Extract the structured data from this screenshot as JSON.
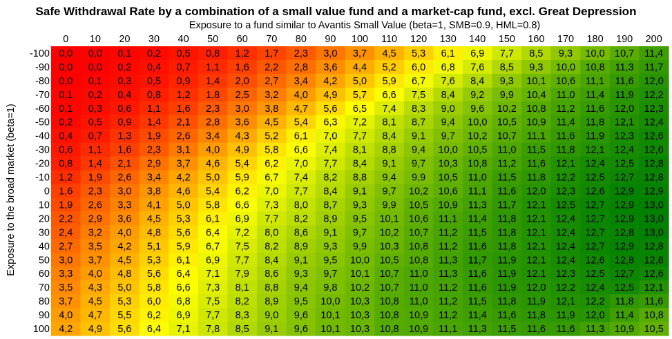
{
  "chart_data": {
    "type": "heatmap",
    "title": "Safe Withdrawal Rate by a combination of a small value fund and a market-cap fund, excl. Great Depression",
    "xlabel": "Exposure to a fund similar to Avantis Small Value (beta=1, SMB=0.9, HML=0.8)",
    "ylabel": "Exposure to the broad market (beta=1)",
    "x_categories": [
      "0",
      "10",
      "20",
      "30",
      "40",
      "50",
      "60",
      "70",
      "80",
      "90",
      "100",
      "110",
      "120",
      "130",
      "140",
      "150",
      "160",
      "170",
      "180",
      "190",
      "200"
    ],
    "y_categories": [
      "-100",
      "-90",
      "-80",
      "-70",
      "-60",
      "-50",
      "-40",
      "-30",
      "-20",
      "-10",
      "0",
      "10",
      "20",
      "30",
      "40",
      "50",
      "60",
      "70",
      "80",
      "90",
      "100"
    ],
    "cell_labels": [
      [
        "0,0",
        "0,0",
        "0,1",
        "0,2",
        "0,5",
        "0,8",
        "1,2",
        "1,7",
        "2,3",
        "3,0",
        "3,7",
        "4,5",
        "5,3",
        "6,1",
        "6,9",
        "7,7",
        "8,5",
        "9,3",
        "10,0",
        "10,7",
        "11,4"
      ],
      [
        "0,0",
        "0,0",
        "0,2",
        "0,4",
        "0,7",
        "1,1",
        "1,6",
        "2,2",
        "2,8",
        "3,6",
        "4,4",
        "5,2",
        "6,0",
        "6,8",
        "7,6",
        "8,5",
        "9,3",
        "10,0",
        "10,8",
        "11,3",
        "11,7"
      ],
      [
        "0,0",
        "0,1",
        "0,3",
        "0,5",
        "0,9",
        "1,4",
        "2,0",
        "2,7",
        "3,4",
        "4,2",
        "5,0",
        "5,9",
        "6,7",
        "7,6",
        "8,4",
        "9,3",
        "10,1",
        "10,6",
        "11,1",
        "11,6",
        "12,0"
      ],
      [
        "0,1",
        "0,2",
        "0,4",
        "0,8",
        "1,2",
        "1,8",
        "2,5",
        "3,2",
        "4,0",
        "4,9",
        "5,7",
        "6,6",
        "7,5",
        "8,4",
        "9,2",
        "9,9",
        "10,4",
        "11,0",
        "11,4",
        "11,9",
        "12,2"
      ],
      [
        "0,1",
        "0,3",
        "0,6",
        "1,1",
        "1,6",
        "2,3",
        "3,0",
        "3,8",
        "4,7",
        "5,6",
        "6,5",
        "7,4",
        "8,3",
        "9,0",
        "9,6",
        "10,2",
        "10,8",
        "11,2",
        "11,6",
        "12,0",
        "12,3"
      ],
      [
        "0,2",
        "0,5",
        "0,9",
        "1,4",
        "2,1",
        "2,8",
        "3,6",
        "4,5",
        "5,4",
        "6,3",
        "7,2",
        "8,1",
        "8,7",
        "9,4",
        "10,0",
        "10,5",
        "10,9",
        "11,4",
        "11,8",
        "12,1",
        "12,4"
      ],
      [
        "0,4",
        "0,7",
        "1,3",
        "1,9",
        "2,6",
        "3,4",
        "4,3",
        "5,2",
        "6,1",
        "7,0",
        "7,7",
        "8,4",
        "9,1",
        "9,7",
        "10,2",
        "10,7",
        "11,1",
        "11,6",
        "11,9",
        "12,3",
        "12,6"
      ],
      [
        "0,6",
        "1,1",
        "1,6",
        "2,3",
        "3,1",
        "4,0",
        "4,9",
        "5,8",
        "6,6",
        "7,4",
        "8,1",
        "8,8",
        "9,4",
        "10,0",
        "10,5",
        "11,0",
        "11,5",
        "11,8",
        "12,1",
        "12,4",
        "12,6"
      ],
      [
        "0,8",
        "1,4",
        "2,1",
        "2,9",
        "3,7",
        "4,6",
        "5,4",
        "6,2",
        "7,0",
        "7,7",
        "8,4",
        "9,1",
        "9,7",
        "10,3",
        "10,8",
        "11,2",
        "11,6",
        "12,1",
        "12,4",
        "12,5",
        "12,8"
      ],
      [
        "1,2",
        "1,9",
        "2,6",
        "3,4",
        "4,2",
        "5,0",
        "5,9",
        "6,7",
        "7,4",
        "8,2",
        "8,8",
        "9,4",
        "9,9",
        "10,5",
        "11,0",
        "11,5",
        "11,8",
        "12,2",
        "12,5",
        "12,7",
        "12,8"
      ],
      [
        "1,6",
        "2,3",
        "3,0",
        "3,8",
        "4,6",
        "5,4",
        "6,2",
        "7,0",
        "7,7",
        "8,4",
        "9,1",
        "9,7",
        "10,2",
        "10,6",
        "11,1",
        "11,6",
        "12,0",
        "12,3",
        "12,6",
        "12,9",
        "12,9"
      ],
      [
        "1,9",
        "2,6",
        "3,3",
        "4,1",
        "5,0",
        "5,8",
        "6,6",
        "7,3",
        "8,0",
        "8,7",
        "9,3",
        "9,9",
        "10,5",
        "10,9",
        "11,3",
        "11,7",
        "12,1",
        "12,5",
        "12,7",
        "12,9",
        "13,0"
      ],
      [
        "2,2",
        "2,9",
        "3,6",
        "4,5",
        "5,3",
        "6,1",
        "6,9",
        "7,7",
        "8,2",
        "8,9",
        "9,5",
        "10,1",
        "10,6",
        "11,1",
        "11,4",
        "11,8",
        "12,1",
        "12,4",
        "12,7",
        "12,9",
        "13,0"
      ],
      [
        "2,4",
        "3,2",
        "4,0",
        "4,8",
        "5,6",
        "6,4",
        "7,2",
        "8,0",
        "8,6",
        "9,1",
        "9,7",
        "10,2",
        "10,7",
        "11,2",
        "11,5",
        "11,8",
        "12,1",
        "12,4",
        "12,7",
        "12,8",
        "13,0"
      ],
      [
        "2,7",
        "3,5",
        "4,2",
        "5,1",
        "5,9",
        "6,7",
        "7,5",
        "8,2",
        "8,9",
        "9,3",
        "9,9",
        "10,3",
        "10,8",
        "11,2",
        "11,6",
        "11,8",
        "12,1",
        "12,4",
        "12,7",
        "12,9",
        "12,8"
      ],
      [
        "3,0",
        "3,7",
        "4,5",
        "5,3",
        "6,1",
        "6,9",
        "7,7",
        "8,4",
        "9,1",
        "9,5",
        "10,0",
        "10,5",
        "10,8",
        "11,3",
        "11,7",
        "11,9",
        "12,1",
        "12,4",
        "12,6",
        "12,8",
        "12,8"
      ],
      [
        "3,3",
        "4,0",
        "4,8",
        "5,6",
        "6,4",
        "7,1",
        "7,9",
        "8,6",
        "9,3",
        "9,7",
        "10,1",
        "10,7",
        "11,0",
        "11,3",
        "11,6",
        "11,9",
        "12,1",
        "12,3",
        "12,5",
        "12,7",
        "12,6"
      ],
      [
        "3,5",
        "4,3",
        "5,0",
        "5,8",
        "6,6",
        "7,3",
        "8,1",
        "8,8",
        "9,4",
        "9,8",
        "10,2",
        "10,7",
        "11,0",
        "11,2",
        "11,6",
        "11,9",
        "12,0",
        "12,2",
        "12,4",
        "12,5",
        "12,1"
      ],
      [
        "3,7",
        "4,5",
        "5,3",
        "6,0",
        "6,8",
        "7,5",
        "8,2",
        "8,9",
        "9,5",
        "10,0",
        "10,3",
        "10,8",
        "11,0",
        "11,2",
        "11,5",
        "11,8",
        "11,9",
        "12,1",
        "12,2",
        "11,8",
        "11,6"
      ],
      [
        "4,0",
        "4,7",
        "5,5",
        "6,2",
        "6,9",
        "7,7",
        "8,3",
        "9,0",
        "9,6",
        "10,1",
        "10,3",
        "10,8",
        "10,9",
        "11,2",
        "11,4",
        "11,6",
        "11,8",
        "11,9",
        "12,0",
        "11,4",
        "10,8"
      ],
      [
        "4,2",
        "4,9",
        "5,6",
        "6,4",
        "7,1",
        "7,8",
        "8,5",
        "9,1",
        "9,6",
        "10,1",
        "10,3",
        "10,8",
        "10,9",
        "11,1",
        "11,3",
        "11,5",
        "11,6",
        "11,6",
        "11,3",
        "10,9",
        "10,5"
      ]
    ],
    "colorscale": [
      "#ff0000",
      "#ffff00",
      "#008000"
    ],
    "color_min": 0,
    "color_max": 13,
    "legend": "none",
    "grid": false
  }
}
